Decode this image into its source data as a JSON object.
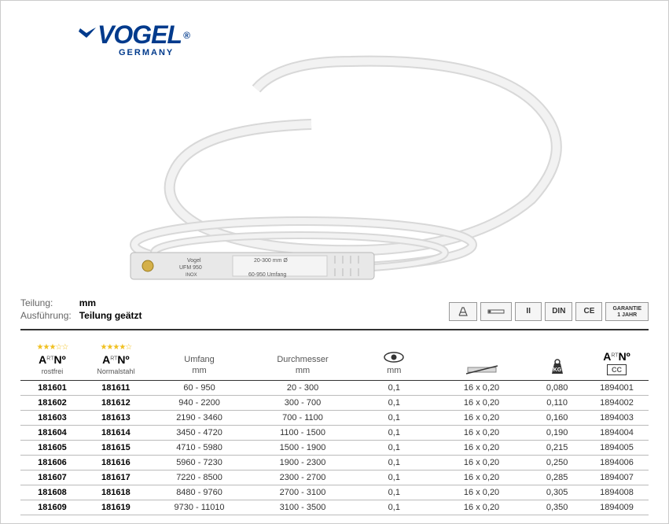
{
  "logo": {
    "main": "VOGEL",
    "sub": "GERMANY",
    "reg": "®"
  },
  "specs": {
    "teilung_label": "Teilung:",
    "teilung_value": "mm",
    "ausfuehrung_label": "Ausführung:",
    "ausfuehrung_value": "Teilung geätzt"
  },
  "badges": {
    "ii": "II",
    "din": "DIN",
    "ce": "CE",
    "garantie1": "GARANTIE",
    "garantie2": "1 JAHR"
  },
  "headers": {
    "artno": "A",
    "artno_sup": "RT",
    "artno_big": "Nº",
    "artno_small": "O",
    "rostfrei": "rostfrei",
    "normalstahl": "Normalstahl",
    "umfang1": "Umfang",
    "umfang2": "mm",
    "durchmesser1": "Durchmesser",
    "durchmesser2": "mm",
    "mm": "mm",
    "cc": "CC",
    "stars3": "★★★☆☆",
    "stars4": "★★★★☆"
  },
  "table": {
    "columns": [
      "art_rostfrei",
      "art_normalstahl",
      "umfang",
      "durchmesser",
      "reading",
      "band",
      "weight",
      "cc"
    ],
    "rows": [
      [
        "181601",
        "181611",
        "60 - 950",
        "20 - 300",
        "0,1",
        "16 x 0,20",
        "0,080",
        "1894001"
      ],
      [
        "181602",
        "181612",
        "940 - 2200",
        "300 - 700",
        "0,1",
        "16 x 0,20",
        "0,110",
        "1894002"
      ],
      [
        "181603",
        "181613",
        "2190 - 3460",
        "700 - 1100",
        "0,1",
        "16 x 0,20",
        "0,160",
        "1894003"
      ],
      [
        "181604",
        "181614",
        "3450 - 4720",
        "1100 - 1500",
        "0,1",
        "16 x 0,20",
        "0,190",
        "1894004"
      ],
      [
        "181605",
        "181615",
        "4710 - 5980",
        "1500 - 1900",
        "0,1",
        "16 x 0,20",
        "0,215",
        "1894005"
      ],
      [
        "181606",
        "181616",
        "5960 - 7230",
        "1900 - 2300",
        "0,1",
        "16 x 0,20",
        "0,250",
        "1894006"
      ],
      [
        "181607",
        "181617",
        "7220 - 8500",
        "2300 - 2700",
        "0,1",
        "16 x 0,20",
        "0,285",
        "1894007"
      ],
      [
        "181608",
        "181618",
        "8480 - 9760",
        "2700 - 3100",
        "0,1",
        "16 x 0,20",
        "0,305",
        "1894008"
      ],
      [
        "181609",
        "181619",
        "9730 - 11010",
        "3100 - 3500",
        "0,1",
        "16 x 0,20",
        "0,350",
        "1894009"
      ]
    ]
  },
  "colors": {
    "logo": "#003a8c",
    "border": "#999999",
    "band": "#e6e6e6",
    "band_stroke": "#bbbbbb"
  }
}
